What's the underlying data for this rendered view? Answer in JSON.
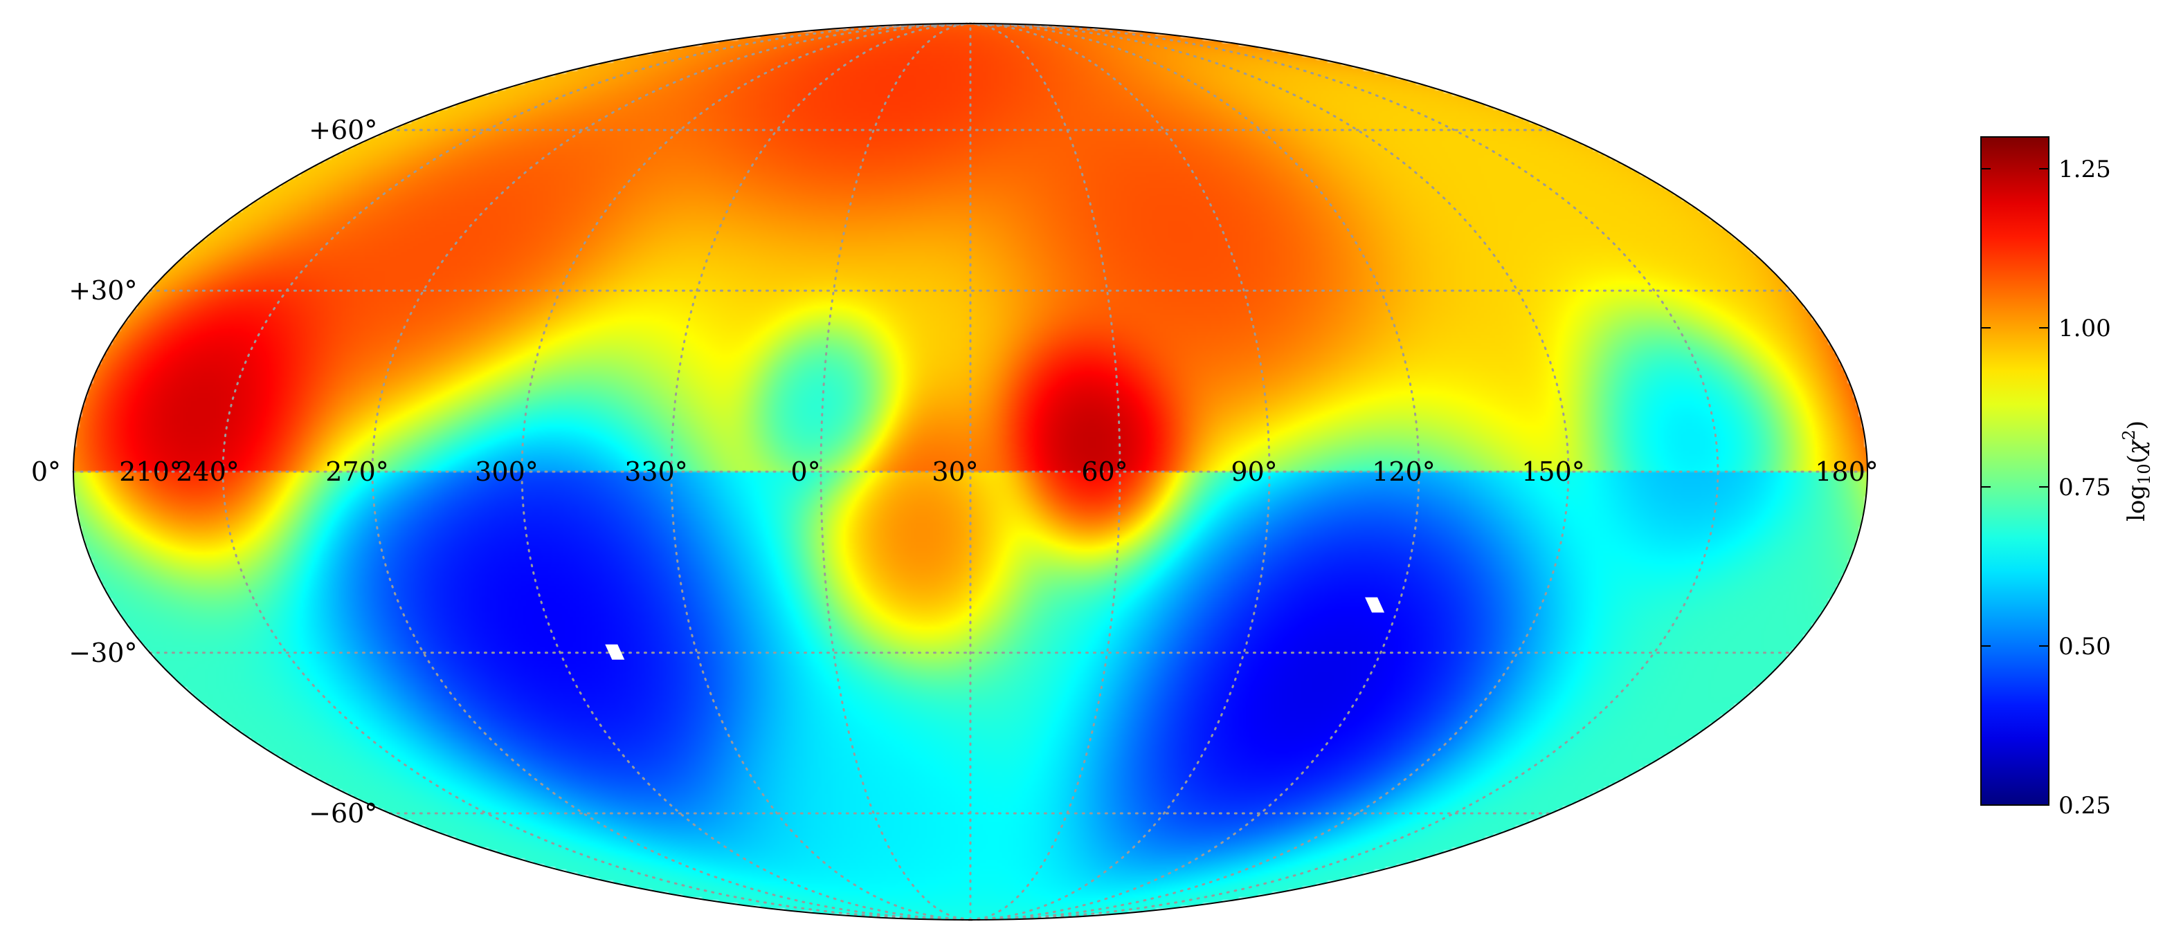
{
  "chart_data": {
    "type": "heatmap",
    "projection": "mollweide",
    "title": "",
    "lon_tick_labels": [
      "210°",
      "240°",
      "270°",
      "300°",
      "330°",
      "0°",
      "30°",
      "60°",
      "90°",
      "120°",
      "150°",
      "180°"
    ],
    "lon_tick_values": [
      210,
      240,
      270,
      300,
      330,
      0,
      30,
      60,
      90,
      120,
      150,
      180
    ],
    "lat_tick_labels": [
      "+60°",
      "+30°",
      "0°",
      "−30°",
      "−60°"
    ],
    "lat_tick_values": [
      60,
      30,
      0,
      -30,
      -60
    ],
    "colorbar": {
      "label": "log10(χ²)",
      "label_parts": {
        "pre": "log",
        "sub": "10",
        "open": "(",
        "var": "χ",
        "sup": "2",
        "close": ")"
      },
      "range": [
        0.25,
        1.3
      ],
      "colormap": "jet",
      "tick_labels": [
        "1.25",
        "1.00",
        "0.75",
        "0.50",
        "0.25"
      ],
      "tick_values": [
        1.25,
        1.0,
        0.75,
        0.5,
        0.25
      ]
    },
    "grid": true,
    "features": [
      {
        "lon": 235,
        "lat": 10,
        "value": 1.28,
        "sigma": 12
      },
      {
        "lon": 55,
        "lat": 5,
        "value": 1.3,
        "sigma": 9
      },
      {
        "lon": 20,
        "lat": -10,
        "value": 1.1,
        "sigma": 10
      },
      {
        "lon": 0,
        "lat": 10,
        "value": 0.62,
        "sigma": 7
      },
      {
        "lon": 300,
        "lat": -25,
        "value": 0.3,
        "sigma": 20
      },
      {
        "lon": 110,
        "lat": -35,
        "value": 0.28,
        "sigma": 18
      },
      {
        "lon": 80,
        "lat": 40,
        "value": 1.12,
        "sigma": 16
      },
      {
        "lon": 270,
        "lat": 35,
        "value": 1.12,
        "sigma": 16
      },
      {
        "lon": 0,
        "lat": 70,
        "value": 1.15,
        "sigma": 14
      },
      {
        "lon": 175,
        "lat": 5,
        "value": 0.55,
        "sigma": 10
      },
      {
        "lon": 0,
        "lat": -60,
        "value": 0.62,
        "sigma": 12
      }
    ],
    "masked_pixels": [
      {
        "lon": 312,
        "lat": -30
      },
      {
        "lon": 115,
        "lat": -22
      }
    ]
  }
}
